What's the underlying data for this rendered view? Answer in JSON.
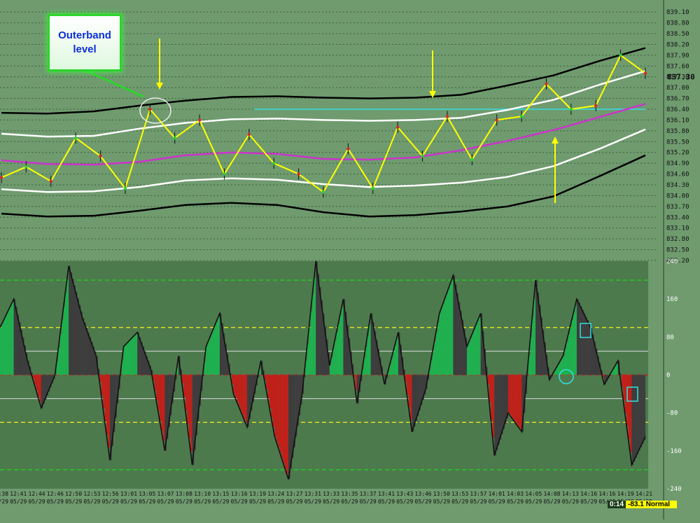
{
  "annotation": {
    "line1": "Outerband",
    "line2": "level"
  },
  "status": {
    "time": "0:14",
    "text": "-83.1 Normal"
  },
  "colors": {
    "bg_price": "#6f9b6f",
    "bg_osc": "#4d7a4d",
    "band_outer": "#000000",
    "band_inner": "#ffffff",
    "mid": "#cc33cc",
    "cyan": "#33e0e0",
    "up_hist": "#1fb04f",
    "down_hist": "#c0201a",
    "neutral_hist": "#3d3d3d",
    "arrow": "#ffff00"
  },
  "chart_data": [
    {
      "type": "line",
      "panel": "price",
      "ylim": [
        832.2,
        839.2
      ],
      "y_ticks": [
        "839.10",
        "838.80",
        "838.50",
        "838.20",
        "837.90",
        "837.60",
        "837.30",
        "837.00",
        "836.70",
        "836.40",
        "836.10",
        "835.80",
        "835.50",
        "835.20",
        "834.90",
        "834.60",
        "834.30",
        "834.00",
        "833.70",
        "833.40",
        "833.10",
        "832.80",
        "832.50",
        "832.20"
      ],
      "last_price": "837.30",
      "grid": true,
      "series": [
        {
          "role": "outer-upper",
          "color": "#000000",
          "values": [
            836.3,
            836.28,
            836.34,
            836.5,
            836.64,
            836.74,
            836.76,
            836.72,
            836.7,
            836.72,
            836.8,
            837.06,
            837.34,
            837.74,
            838.1
          ]
        },
        {
          "role": "inner-upper",
          "color": "#ffffff",
          "values": [
            835.72,
            835.64,
            835.66,
            835.86,
            836.02,
            836.12,
            836.14,
            836.1,
            836.08,
            836.1,
            836.16,
            836.38,
            836.66,
            837.08,
            837.46
          ]
        },
        {
          "role": "mid",
          "color": "#cc33cc",
          "values": [
            834.98,
            834.88,
            834.86,
            834.94,
            835.12,
            835.2,
            835.16,
            835.02,
            835.0,
            835.06,
            835.26,
            835.52,
            835.82,
            836.18,
            836.55
          ]
        },
        {
          "role": "inner-lower",
          "color": "#ffffff",
          "values": [
            834.18,
            834.1,
            834.12,
            834.24,
            834.42,
            834.48,
            834.44,
            834.32,
            834.24,
            834.28,
            834.36,
            834.52,
            834.82,
            835.3,
            835.84
          ]
        },
        {
          "role": "outer-lower",
          "color": "#000000",
          "values": [
            833.5,
            833.42,
            833.44,
            833.58,
            833.74,
            833.8,
            833.74,
            833.54,
            833.42,
            833.46,
            833.56,
            833.7,
            833.98,
            834.54,
            835.12
          ]
        },
        {
          "role": "price",
          "color": "#ffff00",
          "values": [
            834.5,
            834.8,
            834.4,
            835.6,
            835.1,
            834.2,
            836.4,
            835.6,
            836.1,
            834.6,
            835.7,
            834.9,
            834.6,
            834.1,
            835.3,
            834.2,
            835.9,
            835.1,
            836.2,
            835.0,
            836.1,
            836.2,
            837.1,
            836.4,
            836.5,
            837.9,
            837.4
          ]
        }
      ],
      "x_tick_positions": [
        0,
        0.5,
        1,
        1.5,
        2,
        2.5,
        3,
        3.5,
        4,
        4.5,
        5,
        5.5,
        6,
        6.5,
        7,
        7.5,
        8,
        8.5,
        9,
        9.5,
        10,
        10.5,
        11,
        11.5,
        12,
        12.5,
        13,
        13.5,
        14
      ],
      "reference_lines": [
        {
          "label": "cyan level",
          "y": 836.4,
          "x_from": 5.5,
          "x_to": 14
        }
      ],
      "markers": [
        "arrow-down at 13:07",
        "arrow-down at 13:50",
        "arrow-up at 14:05"
      ]
    },
    {
      "type": "area",
      "panel": "oscillator",
      "ylim": [
        -240,
        240
      ],
      "y_ticks": [
        "240",
        "160",
        "80",
        "0",
        "-80",
        "-160",
        "-240"
      ],
      "levels": [
        200,
        100,
        0,
        -100,
        -200
      ],
      "x_labels_time": [
        "12:38",
        "12:41",
        "12:44",
        "12:46",
        "12:50",
        "12:53",
        "12:56",
        "13:01",
        "13:05",
        "13:07",
        "13:08",
        "13:10",
        "13:15",
        "13:16",
        "13:19",
        "13:24",
        "13:27",
        "13:31",
        "13:33",
        "13:35",
        "13:37",
        "13:41",
        "13:43",
        "13:46",
        "13:50",
        "13:53",
        "13:57",
        "14:01",
        "14:03",
        "14:05",
        "14:08",
        "14:13",
        "14:16",
        "14:16",
        "14:19",
        "14:21"
      ],
      "x_label_date": "05/29",
      "values": [
        100,
        160,
        30,
        -70,
        0,
        230,
        120,
        40,
        -180,
        60,
        90,
        10,
        -160,
        40,
        -190,
        60,
        130,
        -40,
        -110,
        30,
        -130,
        -220,
        -40,
        240,
        20,
        160,
        -60,
        130,
        -20,
        90,
        -120,
        -30,
        130,
        210,
        60,
        130,
        -170,
        -80,
        -120,
        200,
        -10,
        40,
        160,
        100,
        -20,
        30,
        -190,
        -130
      ]
    }
  ]
}
